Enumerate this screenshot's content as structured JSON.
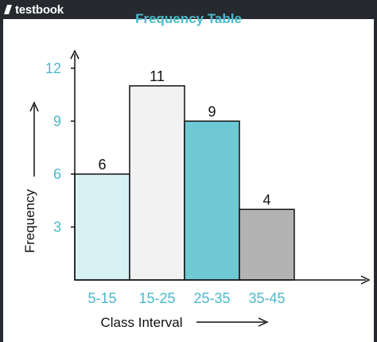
{
  "brand": {
    "name": "testbook",
    "icon": "testbook-logo-icon"
  },
  "colors": {
    "background": "#262a2e",
    "accent": "#4bb9cb",
    "axis": "#111111"
  },
  "chart_data": {
    "type": "bar",
    "title": "Frequency Table",
    "xlabel": "Class Interval",
    "ylabel": "Frequency",
    "categories": [
      "5-15",
      "15-25",
      "25-35",
      "35-45"
    ],
    "values": [
      6,
      11,
      9,
      4
    ],
    "bar_colors": [
      "#d6f0f4",
      "#f2f2f2",
      "#6ec9d5",
      "#b3b3b3"
    ],
    "yticks": [
      3,
      6,
      9,
      12
    ],
    "ylim": [
      0,
      12.8
    ],
    "grid": false,
    "legend": "none"
  }
}
